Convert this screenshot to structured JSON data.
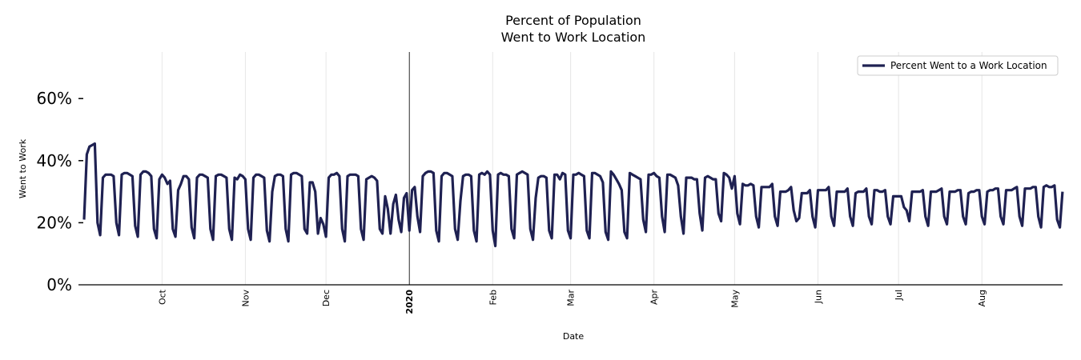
{
  "chart_data": {
    "type": "line",
    "title": "Percent of Population",
    "subtitle": "Went to Work Location",
    "xlabel": "Date",
    "ylabel": "Went to Work",
    "x_range": [
      "2019-09-02",
      "2020-08-31"
    ],
    "x_frequency": "daily",
    "ylim": [
      0,
      75
    ],
    "y_ticks": [
      {
        "value": 0,
        "label": "0%"
      },
      {
        "value": 20,
        "label": "20%"
      },
      {
        "value": 40,
        "label": "40%"
      },
      {
        "value": 60,
        "label": "60%"
      }
    ],
    "x_ticks": [
      {
        "date": "2019-10-01",
        "label": "Oct",
        "bold": false
      },
      {
        "date": "2019-11-01",
        "label": "Nov",
        "bold": false
      },
      {
        "date": "2019-12-01",
        "label": "Dec",
        "bold": false
      },
      {
        "date": "2020-01-01",
        "label": "2020",
        "bold": true
      },
      {
        "date": "2020-02-01",
        "label": "Feb",
        "bold": false
      },
      {
        "date": "2020-03-01",
        "label": "Mar",
        "bold": false
      },
      {
        "date": "2020-04-01",
        "label": "Apr",
        "bold": false
      },
      {
        "date": "2020-05-01",
        "label": "May",
        "bold": false
      },
      {
        "date": "2020-06-01",
        "label": "Jun",
        "bold": false
      },
      {
        "date": "2020-07-01",
        "label": "Jul",
        "bold": false
      },
      {
        "date": "2020-08-01",
        "label": "Aug",
        "bold": false
      }
    ],
    "grid": "vertical at month ticks",
    "reference_line": "2020-01-01",
    "legend_position": "top-right",
    "series": [
      {
        "name": "Percent Went to a Work Location",
        "color": "#1f2152",
        "values": [
          21,
          42,
          44.5,
          45,
          45.5,
          20,
          16,
          34.5,
          35.5,
          35.5,
          35.5,
          35,
          20,
          16,
          35.5,
          36,
          36,
          35.5,
          35,
          19,
          15.5,
          35.5,
          36.5,
          36.5,
          36,
          35,
          18,
          15,
          34,
          35.5,
          34.5,
          32.5,
          33.5,
          18,
          15.5,
          30.5,
          32.5,
          35,
          35,
          34,
          18.5,
          15,
          34.5,
          35.5,
          35.5,
          35,
          34.5,
          18,
          14.5,
          35,
          35.5,
          35.5,
          35,
          34.5,
          18,
          14.5,
          34.5,
          34,
          35.5,
          35,
          34,
          18,
          14.5,
          34.5,
          35.5,
          35.5,
          35,
          34.5,
          17.5,
          14,
          30,
          35,
          35.5,
          35.5,
          35,
          18,
          14,
          35.5,
          36,
          36,
          35.5,
          35,
          18,
          16.5,
          33,
          33,
          30,
          16.5,
          21.5,
          19.5,
          15.5,
          34.5,
          35.5,
          35.5,
          36,
          35,
          18,
          14,
          35,
          35.5,
          35.5,
          35.5,
          35,
          18,
          14.5,
          34,
          34.5,
          35,
          34.5,
          33.5,
          18,
          16.5,
          28.5,
          24.5,
          16.5,
          26,
          29,
          21,
          17,
          28,
          29.5,
          17.5,
          30.5,
          31.5,
          22,
          17,
          35,
          36,
          36.5,
          36.5,
          36,
          17.5,
          14,
          35,
          36,
          36,
          35.5,
          35,
          18,
          14.5,
          27,
          35,
          35.5,
          35.5,
          35,
          17.5,
          14,
          35.5,
          36,
          35.5,
          36.5,
          35.5,
          17.5,
          12.5,
          35.5,
          36,
          35.5,
          35.5,
          35,
          18,
          15,
          35.5,
          36,
          36.5,
          36,
          35.5,
          18,
          14.5,
          28,
          34.5,
          35,
          35,
          34.5,
          17.5,
          15,
          35.5,
          35.5,
          34,
          36,
          35.5,
          17.5,
          15,
          35.5,
          35.5,
          36,
          35.5,
          35,
          17.5,
          15,
          36,
          36,
          35.5,
          35,
          33,
          17,
          14.5,
          36.5,
          35.5,
          34,
          32.5,
          30.5,
          17,
          15,
          36,
          35.5,
          35,
          34.5,
          34,
          21,
          17,
          35.5,
          35.5,
          36,
          35,
          34.5,
          22,
          17,
          35.5,
          35.5,
          35,
          34.5,
          32,
          22,
          16.5,
          34.5,
          34.5,
          34.5,
          34,
          34,
          23,
          17.5,
          34.5,
          35,
          34.5,
          34,
          34,
          23,
          20.5,
          36,
          35.5,
          34.5,
          31,
          35,
          23,
          19.5,
          32.5,
          32,
          32,
          32.5,
          32,
          22,
          18.5,
          31.5,
          31.5,
          31.5,
          31.5,
          32.5,
          22,
          19,
          30,
          30,
          30,
          30.5,
          31.5,
          24,
          20.5,
          21.5,
          29.5,
          29.5,
          29.5,
          30.5,
          22,
          18.5,
          30.5,
          30.5,
          30.5,
          30.5,
          31.5,
          22,
          19,
          30,
          30,
          30,
          30,
          31,
          22,
          19,
          29.5,
          30,
          30,
          30,
          31,
          22,
          19.5,
          30.5,
          30.5,
          30,
          30,
          30.5,
          22,
          19.5,
          28.5,
          28.5,
          28.5,
          28.5,
          25,
          24,
          20.5,
          30,
          30,
          30,
          30,
          30.5,
          22,
          19,
          30,
          30,
          30,
          30.5,
          31,
          22,
          19.5,
          30,
          30,
          30,
          30.5,
          30.5,
          22,
          19.5,
          29.5,
          30,
          30,
          30.5,
          30.5,
          22,
          19.5,
          30,
          30.5,
          30.5,
          31,
          31,
          22,
          19.5,
          30.5,
          30.5,
          30.5,
          31,
          31.5,
          22,
          19,
          31,
          31,
          31,
          31.5,
          31.5,
          22,
          18.5,
          31.5,
          32,
          31.5,
          31.5,
          32,
          21,
          18.5,
          30
        ]
      }
    ]
  }
}
